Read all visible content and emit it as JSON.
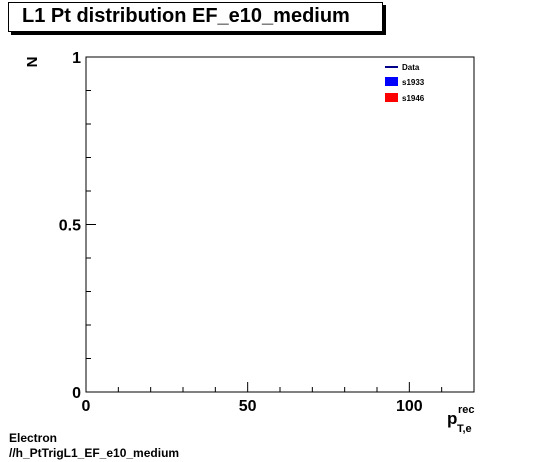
{
  "chart_data": {
    "type": "line",
    "title": "L1 Pt distribution EF_e10_medium",
    "ylabel": "N",
    "xlabel_main": "p",
    "xlabel_sup": "rec",
    "xlabel_sub": "T,e",
    "xlim": [
      0,
      120
    ],
    "ylim": [
      0,
      1
    ],
    "xticks": [
      0,
      50,
      100
    ],
    "yticks": [
      0,
      0.5,
      1
    ],
    "ytick_labels": [
      "0",
      "0.5",
      "1"
    ],
    "grid": false,
    "legend_position": "top-right",
    "series": [
      {
        "name": "Data",
        "style": "line",
        "color": "#00008b",
        "values": []
      },
      {
        "name": "s1933",
        "style": "fill",
        "color": "#0000ff",
        "values": []
      },
      {
        "name": "s1946",
        "style": "fill",
        "color": "#ff0000",
        "values": []
      }
    ]
  },
  "footer": {
    "line1": "Electron",
    "line2": "//h_PtTrigL1_EF_e10_medium"
  }
}
